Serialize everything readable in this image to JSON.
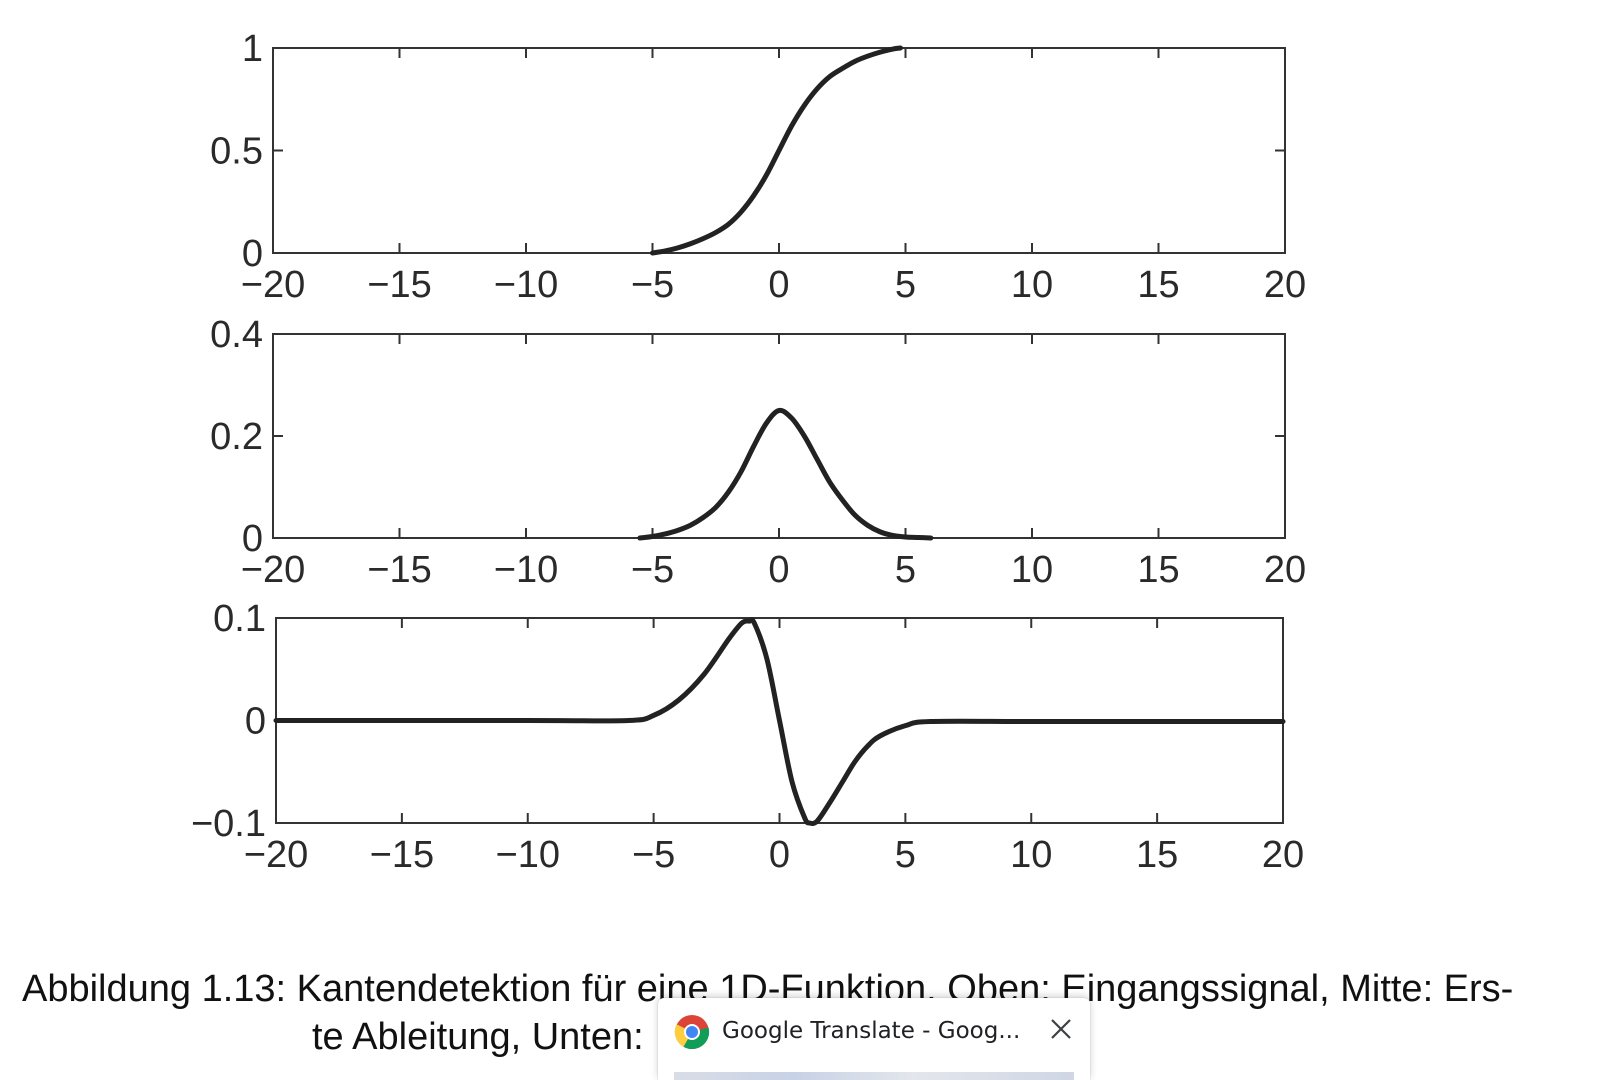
{
  "chart_data": [
    {
      "type": "line",
      "xlim": [
        -20,
        20
      ],
      "ylim": [
        0,
        1
      ],
      "x_ticks": [
        "−20",
        "−15",
        "−10",
        "−5",
        "0",
        "5",
        "10",
        "15",
        "20"
      ],
      "y_ticks": [
        "0",
        "0.5",
        "1"
      ],
      "series": [
        {
          "x": [
            -5,
            -4.5,
            -4,
            -3.5,
            -3,
            -2.5,
            -2,
            -1.5,
            -1,
            -0.5,
            0,
            0.5,
            1,
            1.5,
            2,
            2.5,
            3,
            3.5,
            4,
            4.5,
            4.8
          ],
          "values": [
            0,
            0.01,
            0.025,
            0.045,
            0.07,
            0.1,
            0.14,
            0.2,
            0.28,
            0.38,
            0.5,
            0.62,
            0.72,
            0.8,
            0.86,
            0.9,
            0.935,
            0.96,
            0.98,
            0.995,
            1.0
          ]
        }
      ]
    },
    {
      "type": "line",
      "xlim": [
        -20,
        20
      ],
      "ylim": [
        0,
        0.4
      ],
      "x_ticks": [
        "−20",
        "−15",
        "−10",
        "−5",
        "0",
        "5",
        "10",
        "15",
        "20"
      ],
      "y_ticks": [
        "0",
        "0.2",
        "0.4"
      ],
      "series": [
        {
          "x": [
            -5.5,
            -5,
            -4.5,
            -4,
            -3.5,
            -3,
            -2.5,
            -2,
            -1.5,
            -1,
            -0.5,
            0,
            0.5,
            1,
            1.5,
            2,
            2.5,
            3,
            3.5,
            4,
            4.5,
            5,
            5.5,
            6
          ],
          "values": [
            0,
            0.003,
            0.008,
            0.015,
            0.025,
            0.04,
            0.06,
            0.09,
            0.13,
            0.18,
            0.225,
            0.25,
            0.235,
            0.2,
            0.155,
            0.11,
            0.075,
            0.045,
            0.025,
            0.012,
            0.005,
            0.002,
            0.001,
            0
          ]
        }
      ]
    },
    {
      "type": "line",
      "xlim": [
        -20,
        20
      ],
      "ylim": [
        -0.1,
        0.1
      ],
      "x_ticks": [
        "−20",
        "−15",
        "−10",
        "−5",
        "0",
        "5",
        "10",
        "15",
        "20"
      ],
      "y_ticks": [
        "−0.1",
        "0",
        "0.1"
      ],
      "series": [
        {
          "x": [
            -20,
            -10,
            -6,
            -5,
            -4,
            -3,
            -2,
            -1.5,
            -1.2,
            -1,
            -0.5,
            0,
            0.5,
            1,
            1.2,
            1.5,
            2,
            2.5,
            3,
            3.5,
            4,
            5,
            6,
            10,
            15,
            20
          ],
          "values": [
            0,
            0,
            0,
            0.005,
            0.02,
            0.045,
            0.08,
            0.095,
            0.097,
            0.095,
            0.06,
            0.0,
            -0.06,
            -0.095,
            -0.1,
            -0.098,
            -0.08,
            -0.06,
            -0.04,
            -0.025,
            -0.015,
            -0.005,
            -0.001,
            -0.001,
            -0.001,
            -0.001
          ]
        }
      ]
    }
  ],
  "caption": {
    "line1": "Abbildung 1.13: Kantendetektion für eine 1D-Funktion. Oben: Eingangssignal, Mitte: Ers-",
    "line2": "te Ableitung, Unten:"
  },
  "tooltip": {
    "title": "Google Translate - Goog...",
    "icon": "chrome-icon",
    "close_icon": "close-icon"
  }
}
